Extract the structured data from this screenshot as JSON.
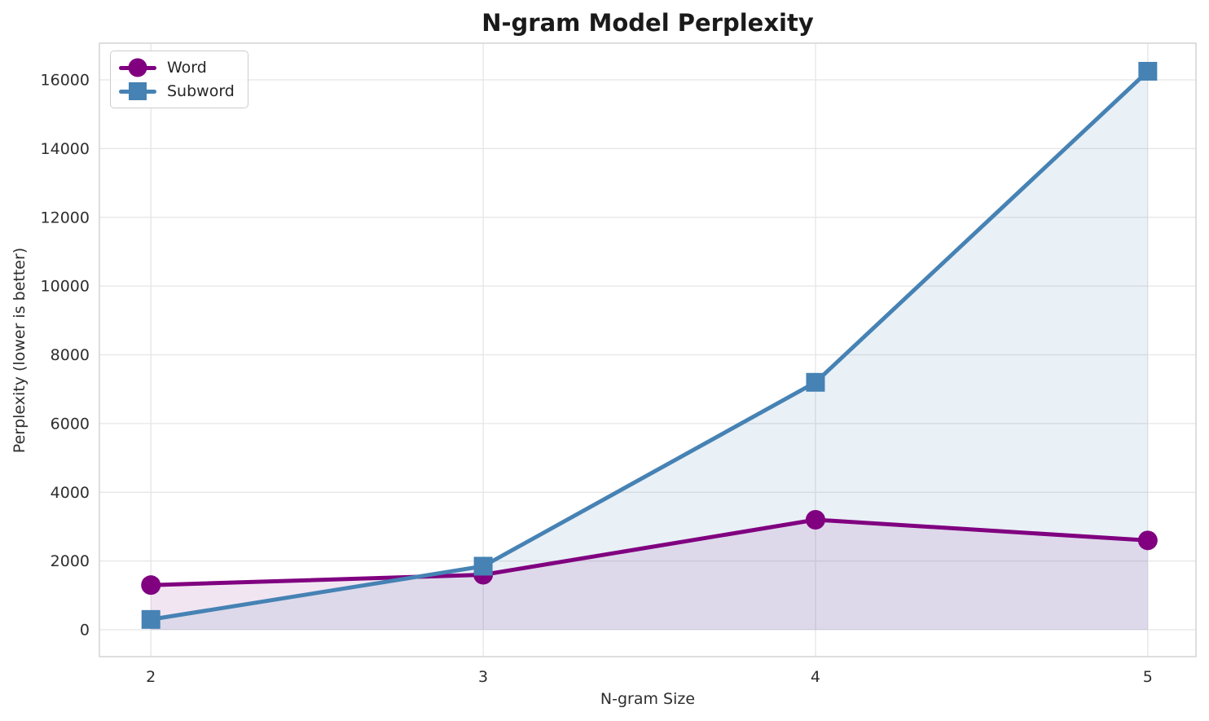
{
  "chart_data": {
    "type": "line",
    "title": "N-gram Model Perplexity",
    "xlabel": "N-gram Size",
    "ylabel": "Perplexity (lower is better)",
    "x": [
      2,
      3,
      4,
      5
    ],
    "x_tick_labels": [
      "2",
      "3",
      "4",
      "5"
    ],
    "y_ticks": [
      0,
      2000,
      4000,
      6000,
      8000,
      10000,
      12000,
      14000,
      16000
    ],
    "y_tick_labels": [
      "0",
      "2000",
      "4000",
      "6000",
      "8000",
      "10000",
      "12000",
      "14000",
      "16000"
    ],
    "xlim": [
      1.845,
      5.145
    ],
    "ylim": [
      -782,
      17067
    ],
    "grid": true,
    "legend_position": "upper left",
    "area_fill": true,
    "fill_baseline": 0,
    "series": [
      {
        "name": "Word",
        "color": "#800080",
        "marker": "circle",
        "line_width": 5,
        "fill_opacity": 0.1,
        "values": [
          1300,
          1600,
          3200,
          2600
        ]
      },
      {
        "name": "Subword",
        "color": "#4682B4",
        "marker": "square",
        "line_width": 5,
        "fill_opacity": 0.12,
        "values": [
          300,
          1850,
          7200,
          16250
        ]
      }
    ]
  },
  "styles": {
    "background": "#ffffff",
    "grid_color": "#e5e5e5",
    "spine_color": "#d3d3d3",
    "tick_text_color": "#2e2e2e",
    "title_color": "#1a1a1a",
    "legend_text_color": "#262626",
    "legend_border_color": "#cccccc"
  }
}
